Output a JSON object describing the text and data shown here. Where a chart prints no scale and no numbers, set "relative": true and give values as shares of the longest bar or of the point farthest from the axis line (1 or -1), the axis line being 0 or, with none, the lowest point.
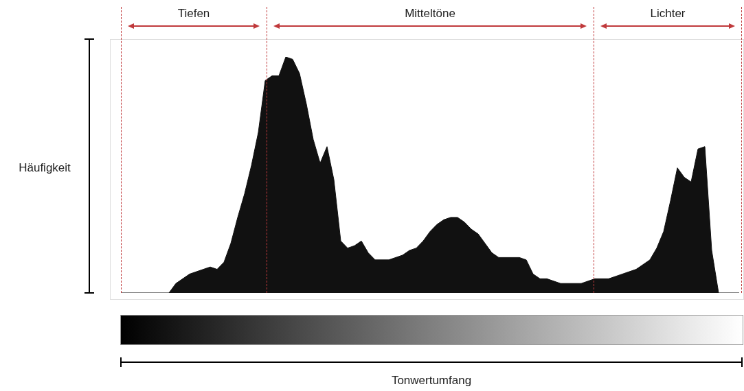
{
  "chart_data": {
    "type": "area",
    "ylabel": "Häufigkeit",
    "relative": true,
    "tick_labels": false,
    "color": "#111111",
    "annotations": [
      "Tiefen",
      "Mitteltöne",
      "Lichter",
      "Tonwertumfang"
    ],
    "categories": [
      null,
      null,
      null,
      null,
      null,
      null,
      null,
      null,
      null,
      null,
      null,
      null,
      null,
      null,
      null,
      null,
      null,
      null,
      null,
      null,
      null,
      null,
      null,
      null,
      null,
      null,
      null,
      null,
      null,
      null,
      null,
      null,
      null,
      null,
      null,
      null,
      null,
      null,
      null,
      null,
      null,
      null,
      null,
      null,
      null,
      null,
      null,
      null,
      null,
      null,
      null,
      null,
      null,
      null,
      null,
      null,
      null,
      null,
      null,
      null,
      null,
      null,
      null,
      null,
      null,
      null,
      null,
      null,
      null,
      null,
      null,
      null,
      null,
      null,
      null,
      null,
      null,
      null,
      null,
      null,
      null,
      null,
      null,
      null,
      null,
      null,
      null,
      null,
      null,
      null,
      null
    ],
    "values": [
      0,
      0,
      0,
      0,
      0,
      0,
      0,
      0,
      0.04,
      0.06,
      0.08,
      0.09,
      0.1,
      0.11,
      0.1,
      0.13,
      0.21,
      0.32,
      0.42,
      0.54,
      0.68,
      0.9,
      0.92,
      0.92,
      1,
      0.99,
      0.93,
      0.8,
      0.65,
      0.55,
      0.62,
      0.48,
      0.22,
      0.19,
      0.2,
      0.22,
      0.17,
      0.14,
      0.14,
      0.14,
      0.15,
      0.16,
      0.18,
      0.19,
      0.22,
      0.26,
      0.29,
      0.31,
      0.32,
      0.32,
      0.3,
      0.27,
      0.25,
      0.21,
      0.17,
      0.15,
      0.15,
      0.15,
      0.15,
      0.14,
      0.08,
      0.06,
      0.06,
      0.05,
      0.04,
      0.04,
      0.04,
      0.04,
      0.05,
      0.06,
      0.06,
      0.06,
      0.07,
      0.08,
      0.09,
      0.1,
      0.12,
      0.14,
      0.19,
      0.26,
      0.39,
      0.53,
      0.49,
      0.47,
      0.61,
      0.62,
      0.18,
      0,
      0,
      0,
      0
    ]
  }
}
